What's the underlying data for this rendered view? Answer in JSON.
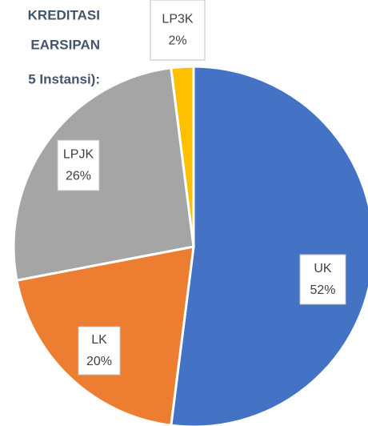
{
  "chart_data": {
    "type": "pie",
    "title_lines": [
      "KREDITASI",
      "EARSIPAN",
      "5 Instansi):"
    ],
    "categories": [
      "UK",
      "LK",
      "LPJK",
      "LP3K"
    ],
    "values": [
      52,
      20,
      26,
      2
    ],
    "value_labels": [
      "52%",
      "20%",
      "26%",
      "2%"
    ],
    "colors": [
      "#4472c4",
      "#ed7d31",
      "#a5a5a5",
      "#ffc000"
    ]
  }
}
